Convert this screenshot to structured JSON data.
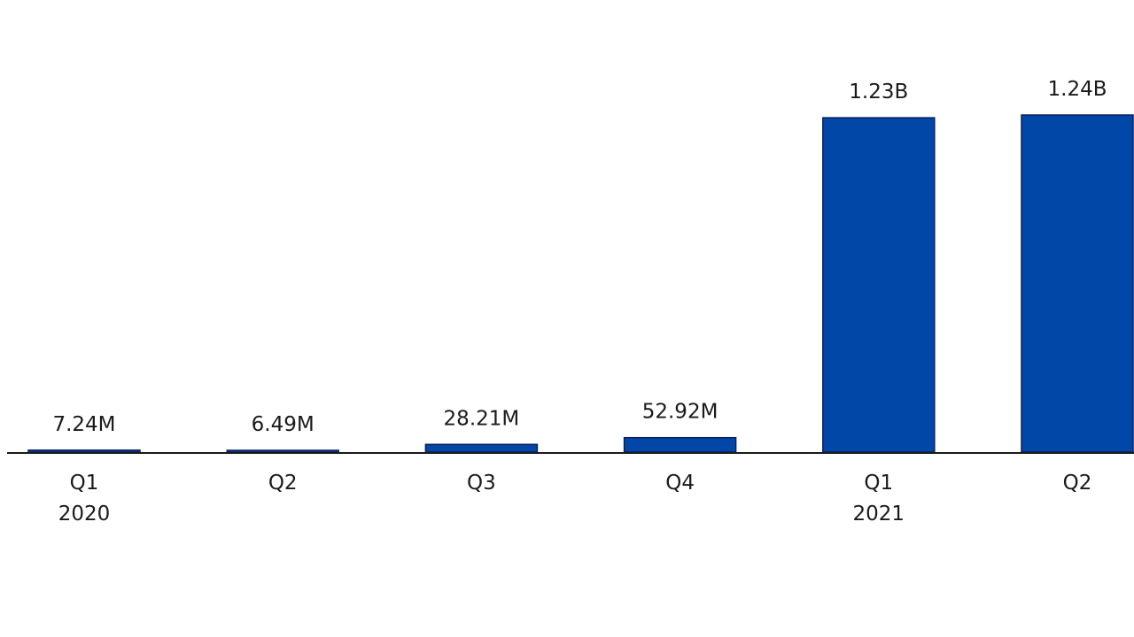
{
  "chart_data": {
    "type": "bar",
    "title": "",
    "xlabel": "",
    "ylabel": "",
    "categories": [
      "Q1",
      "Q2",
      "Q3",
      "Q4",
      "Q1",
      "Q2"
    ],
    "years": [
      "2020",
      "",
      "",
      "",
      "2021",
      ""
    ],
    "values": [
      7240000,
      6490000,
      28210000,
      52920000,
      1230000000,
      1240000000
    ],
    "value_labels": [
      "7.24M",
      "6.49M",
      "28.21M",
      "52.92M",
      "1.23B",
      "1.24B"
    ],
    "ylim": [
      0,
      1240000000
    ],
    "grid": false,
    "legend": "none",
    "colors": {
      "bar": "#0047a8",
      "bar_edge": "#0a1f5c",
      "axis": "#1a1a1a"
    }
  }
}
